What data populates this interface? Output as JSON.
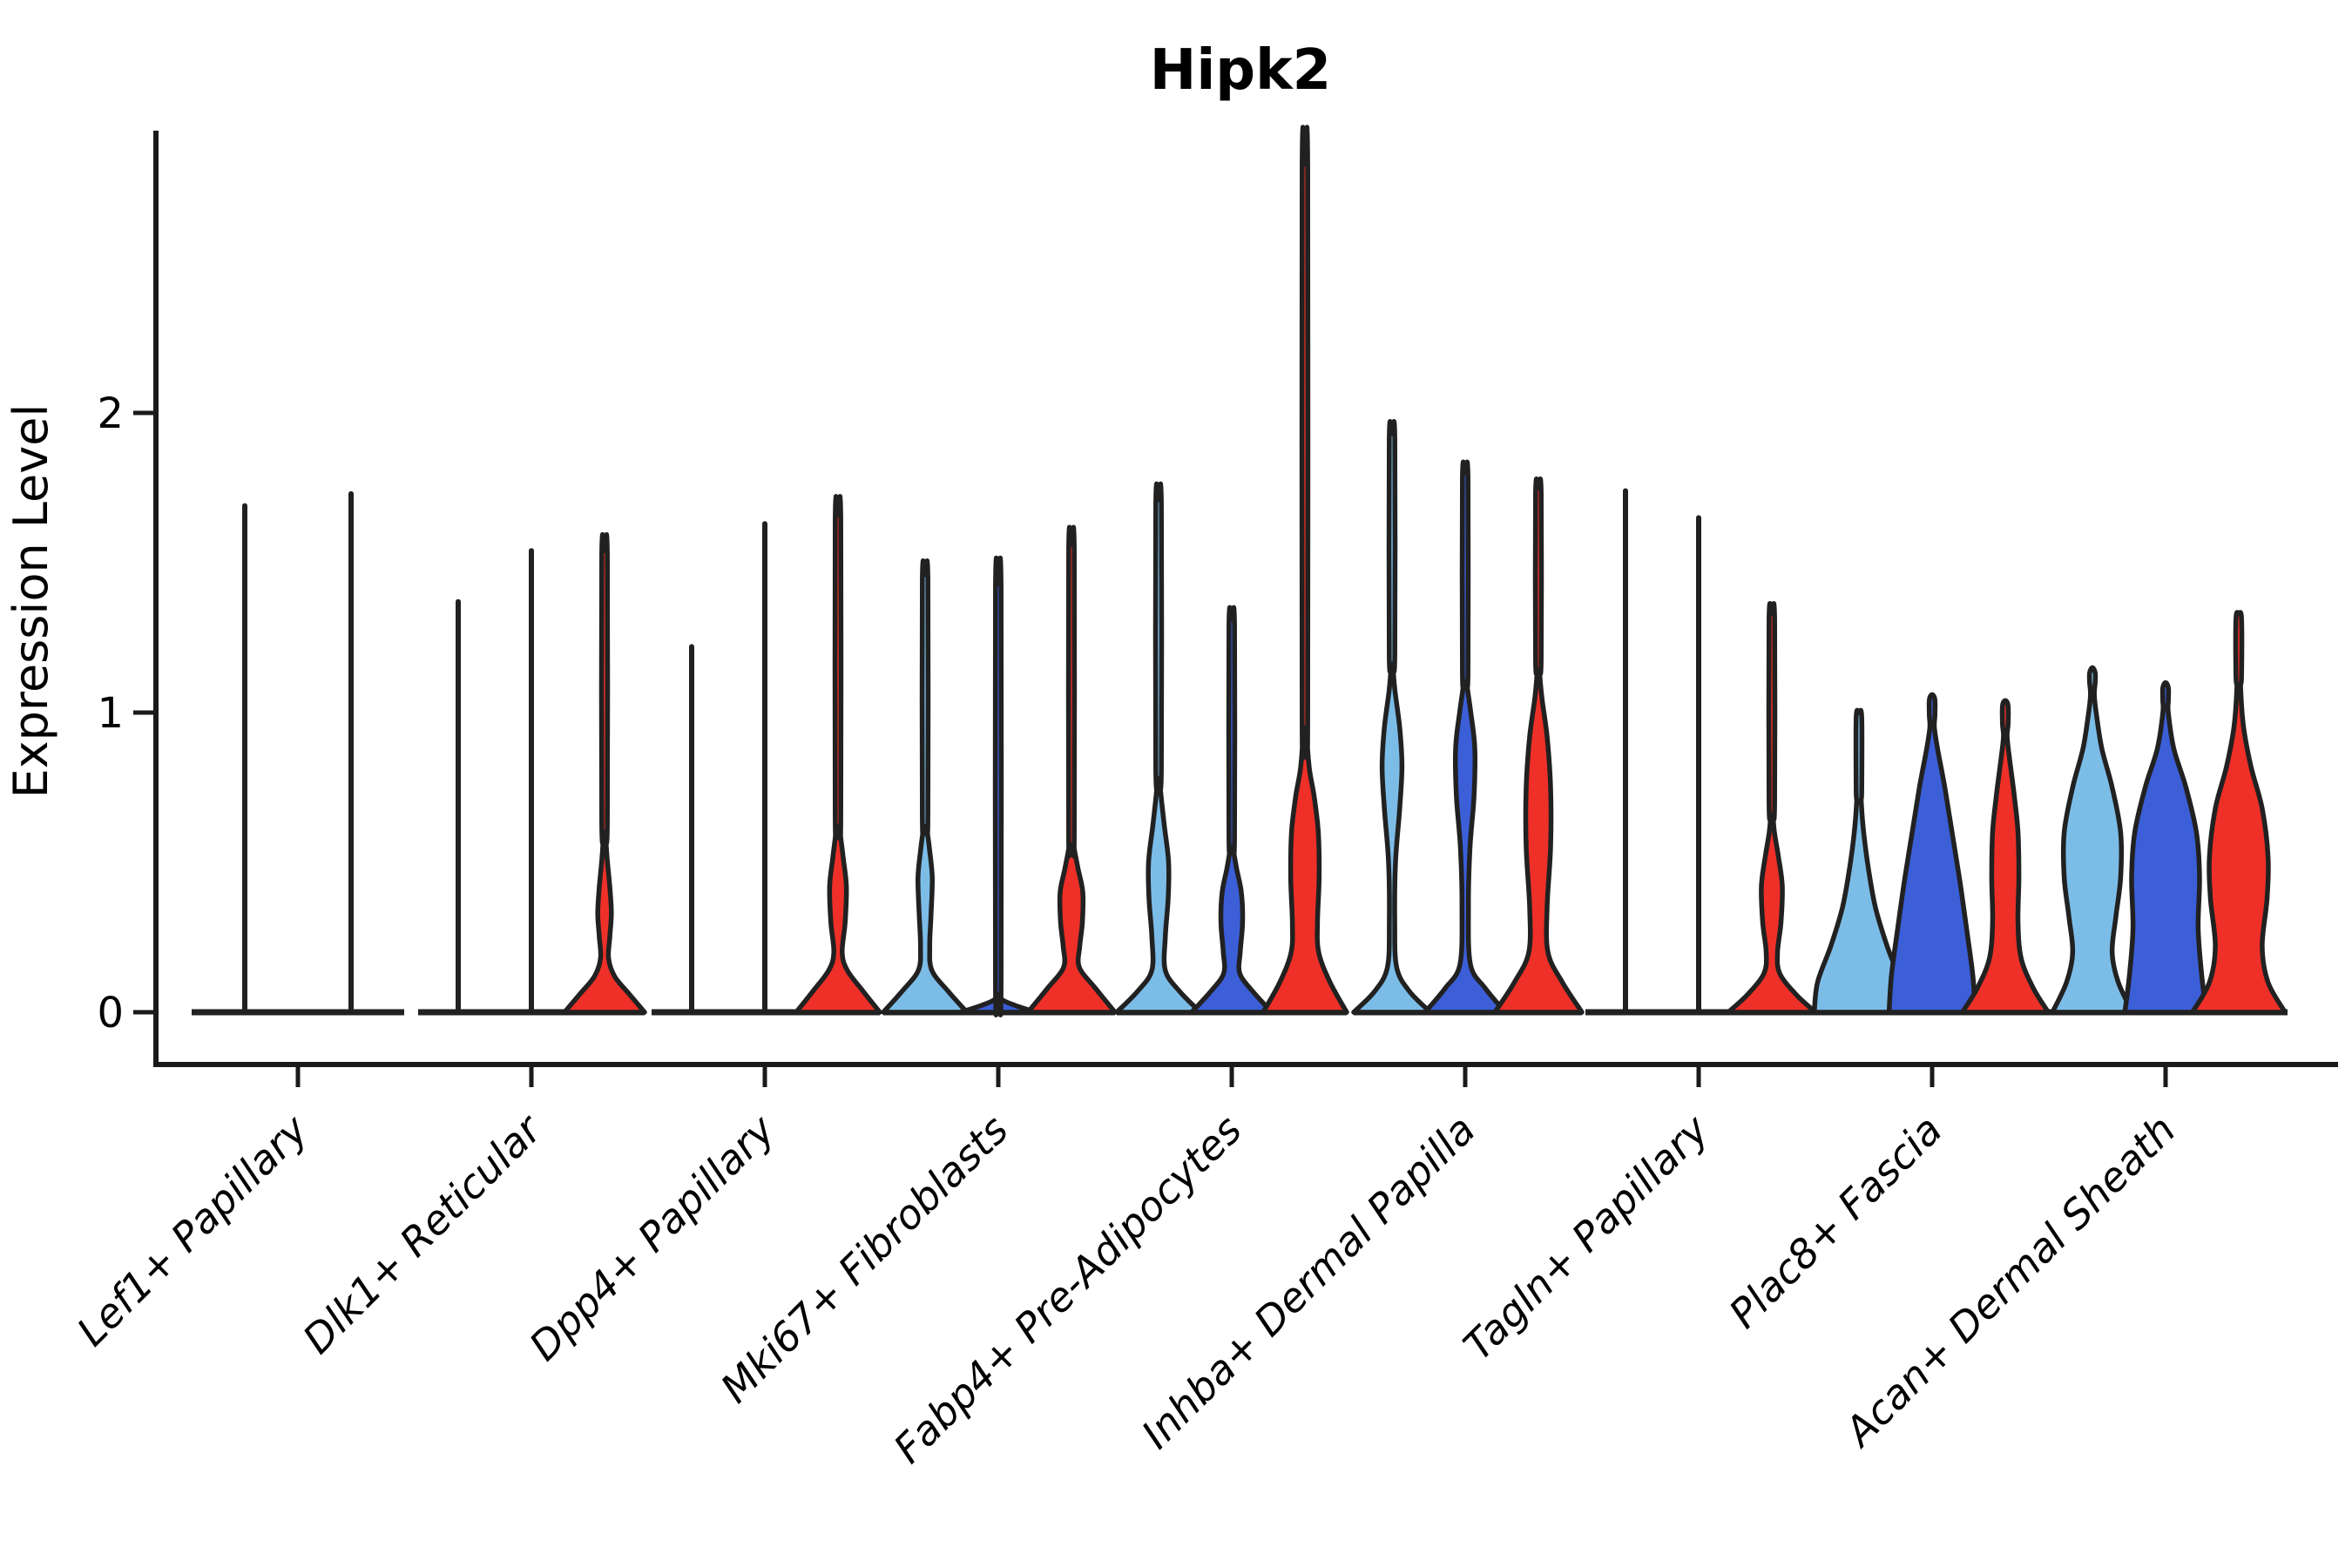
{
  "title": "Hipk2",
  "y_axis": {
    "label": "Expression Level",
    "tick_labels": [
      "0",
      "1",
      "2"
    ]
  },
  "chart_data": {
    "type": "violin",
    "title": "Hipk2",
    "xlabel": "",
    "ylabel": "Expression Level",
    "yticks": [
      0,
      1,
      2
    ],
    "ylim": [
      -0.17,
      2.93
    ],
    "grid": false,
    "legend": "none",
    "palette": {
      "lightblue": "#7cbde8",
      "blue": "#3c5fd8",
      "red": "#ee3028"
    },
    "outline_color": "#212121",
    "categories": [
      "Lef1+ Papillary",
      "Dlk1+ Reticular",
      "Dpp4+ Papillary",
      "Mki67+ Fibroblasts",
      "Fabp4+ Pre-Adipocytes",
      "Inhba+ Dermal Papilla",
      "Tagln+ Papillary",
      "Plac8+ Fascia",
      "Acan+ Dermal Sheath"
    ],
    "groups": [
      {
        "category": "Lef1+ Papillary",
        "violins": [
          {
            "color": "lightblue",
            "max": 1.69,
            "flat": true,
            "hw": 61
          },
          {
            "color": "blue",
            "max": 1.73,
            "flat": true,
            "hw": 61
          }
        ]
      },
      {
        "category": "Dlk1+ Reticular",
        "violins": [
          {
            "color": "lightblue",
            "max": 1.37,
            "flat": true,
            "hw": 46
          },
          {
            "color": "blue",
            "max": 1.54,
            "flat": true,
            "hw": 46
          },
          {
            "color": "red",
            "max": 1.54,
            "flat": false,
            "hw": 46,
            "profile": [
              [
                0,
                1
              ],
              [
                0.06,
                0.62
              ],
              [
                0.12,
                0.25
              ],
              [
                0.18,
                0.1
              ],
              [
                0.25,
                0.13
              ],
              [
                0.33,
                0.17
              ],
              [
                0.42,
                0.13
              ],
              [
                0.52,
                0.06
              ],
              [
                0.6,
                0.03
              ]
            ]
          }
        ]
      },
      {
        "category": "Dpp4+ Papillary",
        "violins": [
          {
            "color": "lightblue",
            "max": 1.22,
            "flat": true,
            "hw": 46
          },
          {
            "color": "blue",
            "max": 1.63,
            "flat": true,
            "hw": 46
          },
          {
            "color": "red",
            "max": 1.66,
            "flat": false,
            "hw": 48,
            "profile": [
              [
                0,
                1
              ],
              [
                0.07,
                0.6
              ],
              [
                0.14,
                0.22
              ],
              [
                0.2,
                0.1
              ],
              [
                0.3,
                0.17
              ],
              [
                0.42,
                0.2
              ],
              [
                0.52,
                0.12
              ],
              [
                0.62,
                0.04
              ]
            ]
          }
        ]
      },
      {
        "category": "Mki67+ Fibroblasts",
        "violins": [
          {
            "color": "lightblue",
            "max": 1.46,
            "flat": false,
            "hw": 48,
            "profile": [
              [
                0,
                1
              ],
              [
                0.07,
                0.55
              ],
              [
                0.14,
                0.16
              ],
              [
                0.22,
                0.11
              ],
              [
                0.32,
                0.14
              ],
              [
                0.45,
                0.17
              ],
              [
                0.55,
                0.1
              ],
              [
                0.62,
                0.04
              ]
            ]
          },
          {
            "color": "blue",
            "max": 1.43,
            "flat": false,
            "hw": 44,
            "profile": [
              [
                0,
                1
              ],
              [
                0.02,
                0.5
              ],
              [
                0.04,
                0.12
              ],
              [
                0.06,
                0.04
              ]
            ]
          },
          {
            "color": "red",
            "max": 1.56,
            "flat": false,
            "hw": 50,
            "profile": [
              [
                0,
                1
              ],
              [
                0.08,
                0.55
              ],
              [
                0.15,
                0.18
              ],
              [
                0.22,
                0.19
              ],
              [
                0.3,
                0.25
              ],
              [
                0.4,
                0.26
              ],
              [
                0.48,
                0.15
              ],
              [
                0.56,
                0.05
              ]
            ]
          }
        ]
      },
      {
        "category": "Fabp4+ Pre-Adipocytes",
        "violins": [
          {
            "color": "lightblue",
            "max": 1.71,
            "flat": false,
            "hw": 48,
            "profile": [
              [
                0,
                1
              ],
              [
                0.07,
                0.5
              ],
              [
                0.14,
                0.16
              ],
              [
                0.25,
                0.16
              ],
              [
                0.38,
                0.23
              ],
              [
                0.5,
                0.24
              ],
              [
                0.62,
                0.14
              ],
              [
                0.72,
                0.06
              ],
              [
                0.78,
                0.03
              ]
            ]
          },
          {
            "color": "blue",
            "max": 1.31,
            "flat": false,
            "hw": 46,
            "profile": [
              [
                0,
                1
              ],
              [
                0.07,
                0.52
              ],
              [
                0.13,
                0.2
              ],
              [
                0.2,
                0.21
              ],
              [
                0.3,
                0.27
              ],
              [
                0.4,
                0.24
              ],
              [
                0.48,
                0.12
              ],
              [
                0.55,
                0.04
              ]
            ]
          },
          {
            "color": "red",
            "max": 2.83,
            "flat": false,
            "hw": 48,
            "profile": [
              [
                0,
                1
              ],
              [
                0.1,
                0.6
              ],
              [
                0.2,
                0.33
              ],
              [
                0.3,
                0.3
              ],
              [
                0.45,
                0.34
              ],
              [
                0.6,
                0.32
              ],
              [
                0.72,
                0.22
              ],
              [
                0.82,
                0.1
              ],
              [
                0.95,
                0.04
              ]
            ]
          }
        ]
      },
      {
        "category": "Inhba+ Dermal Papilla",
        "violins": [
          {
            "color": "lightblue",
            "max": 1.93,
            "flat": false,
            "hw": 44,
            "profile": [
              [
                0,
                1
              ],
              [
                0.07,
                0.45
              ],
              [
                0.15,
                0.12
              ],
              [
                0.3,
                0.07
              ],
              [
                0.5,
                0.09
              ],
              [
                0.68,
                0.2
              ],
              [
                0.82,
                0.26
              ],
              [
                0.95,
                0.2
              ],
              [
                1.08,
                0.07
              ],
              [
                1.16,
                0.03
              ]
            ]
          },
          {
            "color": "blue",
            "max": 1.8,
            "flat": false,
            "hw": 46,
            "profile": [
              [
                0,
                1
              ],
              [
                0.08,
                0.5
              ],
              [
                0.16,
                0.13
              ],
              [
                0.35,
                0.08
              ],
              [
                0.55,
                0.12
              ],
              [
                0.72,
                0.22
              ],
              [
                0.88,
                0.24
              ],
              [
                1.0,
                0.14
              ],
              [
                1.1,
                0.04
              ]
            ]
          },
          {
            "color": "red",
            "max": 1.75,
            "flat": false,
            "hw": 50,
            "profile": [
              [
                0,
                1
              ],
              [
                0.1,
                0.55
              ],
              [
                0.2,
                0.22
              ],
              [
                0.35,
                0.2
              ],
              [
                0.55,
                0.28
              ],
              [
                0.75,
                0.28
              ],
              [
                0.92,
                0.2
              ],
              [
                1.05,
                0.08
              ],
              [
                1.14,
                0.03
              ]
            ]
          }
        ]
      },
      {
        "category": "Tagln+ Papillary",
        "violins": [
          {
            "color": "lightblue",
            "max": 1.74,
            "flat": true,
            "hw": 46
          },
          {
            "color": "blue",
            "max": 1.65,
            "flat": true,
            "hw": 46
          },
          {
            "color": "red",
            "max": 1.33,
            "flat": false,
            "hw": 50,
            "profile": [
              [
                0,
                1
              ],
              [
                0.06,
                0.55
              ],
              [
                0.13,
                0.18
              ],
              [
                0.2,
                0.13
              ],
              [
                0.3,
                0.21
              ],
              [
                0.42,
                0.24
              ],
              [
                0.52,
                0.15
              ],
              [
                0.6,
                0.06
              ],
              [
                0.66,
                0.03
              ]
            ]
          }
        ]
      },
      {
        "category": "Plac8+ Fascia",
        "violins": [
          {
            "color": "lightblue",
            "max": 1.0,
            "flat": false,
            "hw": 54,
            "profile": [
              [
                0,
                0.95
              ],
              [
                0.1,
                0.88
              ],
              [
                0.22,
                0.6
              ],
              [
                0.35,
                0.35
              ],
              [
                0.48,
                0.2
              ],
              [
                0.6,
                0.1
              ],
              [
                0.7,
                0.05
              ]
            ]
          },
          {
            "color": "blue",
            "max": 1.06,
            "flat": false,
            "hw": 52,
            "profile": [
              [
                0,
                0.95
              ],
              [
                0.12,
                0.9
              ],
              [
                0.28,
                0.76
              ],
              [
                0.45,
                0.6
              ],
              [
                0.6,
                0.44
              ],
              [
                0.75,
                0.28
              ],
              [
                0.88,
                0.12
              ],
              [
                0.95,
                0.05
              ]
            ]
          },
          {
            "color": "red",
            "max": 1.04,
            "flat": false,
            "hw": 52,
            "profile": [
              [
                0,
                0.95
              ],
              [
                0.08,
                0.62
              ],
              [
                0.18,
                0.35
              ],
              [
                0.3,
                0.28
              ],
              [
                0.45,
                0.3
              ],
              [
                0.6,
                0.28
              ],
              [
                0.72,
                0.2
              ],
              [
                0.85,
                0.09
              ],
              [
                0.92,
                0.04
              ]
            ]
          }
        ]
      },
      {
        "category": "Acan+ Dermal Sheath",
        "violins": [
          {
            "color": "lightblue",
            "max": 1.15,
            "flat": false,
            "hw": 54,
            "profile": [
              [
                0,
                0.85
              ],
              [
                0.1,
                0.55
              ],
              [
                0.2,
                0.42
              ],
              [
                0.32,
                0.5
              ],
              [
                0.45,
                0.6
              ],
              [
                0.6,
                0.6
              ],
              [
                0.75,
                0.42
              ],
              [
                0.88,
                0.2
              ],
              [
                1.0,
                0.08
              ],
              [
                1.06,
                0.04
              ]
            ]
          },
          {
            "color": "blue",
            "max": 1.1,
            "flat": false,
            "hw": 52,
            "profile": [
              [
                0,
                0.9
              ],
              [
                0.12,
                0.8
              ],
              [
                0.28,
                0.72
              ],
              [
                0.45,
                0.75
              ],
              [
                0.6,
                0.68
              ],
              [
                0.75,
                0.45
              ],
              [
                0.88,
                0.18
              ],
              [
                1.0,
                0.06
              ]
            ]
          },
          {
            "color": "red",
            "max": 1.33,
            "flat": false,
            "hw": 56,
            "profile": [
              [
                0,
                0.95
              ],
              [
                0.1,
                0.6
              ],
              [
                0.22,
                0.48
              ],
              [
                0.38,
                0.58
              ],
              [
                0.52,
                0.6
              ],
              [
                0.68,
                0.48
              ],
              [
                0.82,
                0.25
              ],
              [
                0.95,
                0.1
              ],
              [
                1.08,
                0.04
              ]
            ]
          }
        ]
      }
    ]
  }
}
